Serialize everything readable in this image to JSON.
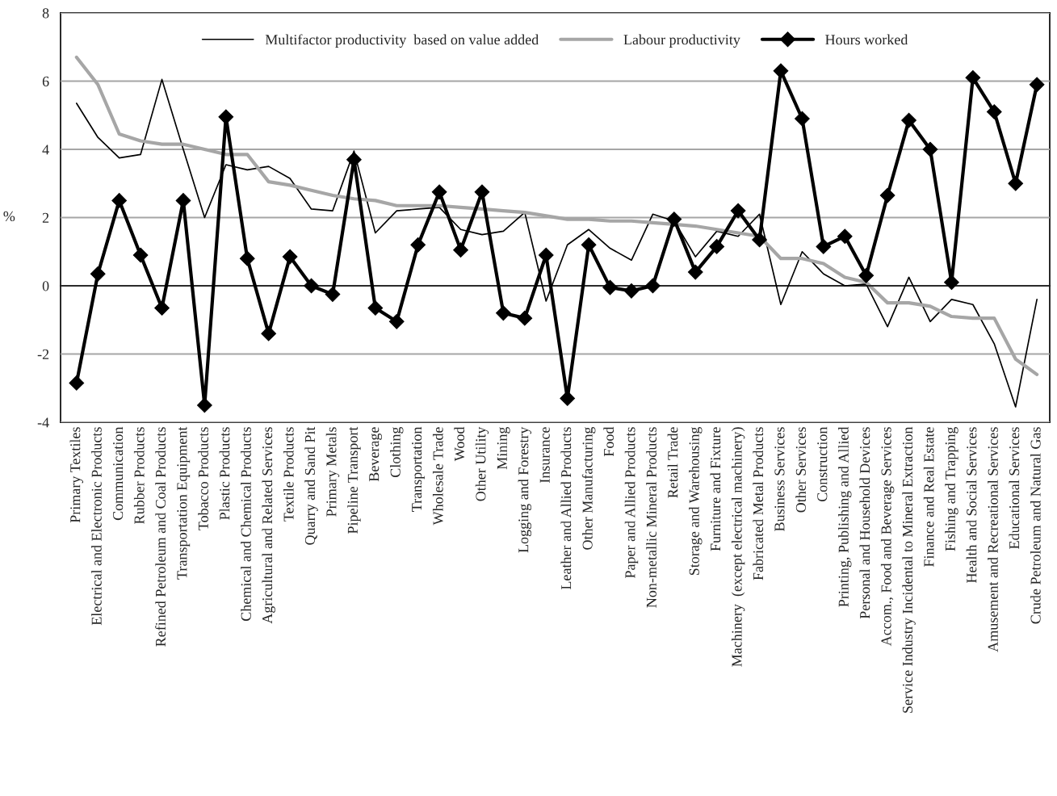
{
  "chart_data": {
    "type": "line",
    "ylabel": "%",
    "categories": [
      "Primary Textiles",
      "Electrical and Electronic Products",
      "Communication",
      "Rubber Products",
      "Refined Petroleum and Coal Products",
      "Transportation Equipment",
      "Tobacco Products",
      "Plastic Products",
      "Chemical and Chemical Products",
      "Agricultural and Related Services",
      "Textile Products",
      "Quarry and Sand Pit",
      "Primary Metals",
      "Pipeline Transport",
      "Beverage",
      "Clothing",
      "Transportation",
      "Wholesale Trade",
      "Wood",
      "Other Utility",
      "Mining",
      "Logging and Forestry",
      "Insurance",
      "Leather and Allied Products",
      "Other Manufacturing",
      "Food",
      "Paper and Allied Products",
      "Non-metallic Mineral Products",
      "Retail Trade",
      "Storage and Warehousing",
      "Furniture and Fixture",
      "Machinery  (except electrical machinery)",
      "Fabricated Metal Products",
      "Business Services",
      "Other Services",
      "Construction",
      "Printing, Publishing and Allied",
      "Personal and Household Devices",
      "Accom., Food and Beverage Services",
      "Service Industry Incidental to Mineral Extraction",
      "Finance and Real Estate",
      "Fishing and Trapping",
      "Health and Social Services",
      "Amusement and Recreational Services",
      "Educational Services",
      "Crude Petroleum and Natural Gas"
    ],
    "series": [
      {
        "name": "Multifactor productivity  based on value added",
        "color": "#000000",
        "marker": "none",
        "values": [
          5.35,
          4.35,
          3.75,
          3.85,
          6.05,
          4.0,
          2.0,
          3.55,
          3.4,
          3.5,
          3.15,
          2.25,
          2.2,
          3.95,
          1.55,
          2.2,
          2.25,
          2.3,
          1.65,
          1.5,
          1.6,
          2.15,
          -0.45,
          1.2,
          1.65,
          1.1,
          0.75,
          2.1,
          1.9,
          0.85,
          1.6,
          1.45,
          2.1,
          -0.55,
          1.0,
          0.35,
          0.0,
          0.05,
          -1.2,
          0.25,
          -1.05,
          -0.4,
          -0.55,
          -1.7,
          -3.55,
          -0.4
        ]
      },
      {
        "name": "Labour productivity",
        "color": "#a6a6a6",
        "marker": "none",
        "values": [
          6.7,
          5.9,
          4.45,
          4.25,
          4.15,
          4.15,
          4.0,
          3.85,
          3.85,
          3.05,
          2.95,
          2.8,
          2.65,
          2.55,
          2.5,
          2.35,
          2.35,
          2.35,
          2.3,
          2.25,
          2.2,
          2.15,
          2.05,
          1.95,
          1.95,
          1.9,
          1.9,
          1.85,
          1.8,
          1.75,
          1.65,
          1.55,
          1.45,
          0.8,
          0.8,
          0.65,
          0.25,
          0.1,
          -0.5,
          -0.5,
          -0.6,
          -0.9,
          -0.95,
          -0.95,
          -2.15,
          -2.6
        ]
      },
      {
        "name": "Hours worked",
        "color": "#000000",
        "marker": "diamond",
        "values": [
          -2.85,
          0.35,
          2.5,
          0.9,
          -0.65,
          2.5,
          -3.5,
          4.95,
          0.8,
          -1.4,
          0.85,
          0.0,
          -0.25,
          3.7,
          -0.65,
          -1.05,
          1.2,
          2.75,
          1.05,
          2.75,
          -0.8,
          -0.95,
          0.9,
          -3.3,
          1.2,
          -0.05,
          -0.15,
          0.0,
          1.95,
          0.4,
          1.15,
          2.2,
          1.35,
          6.3,
          4.9,
          1.15,
          1.45,
          0.3,
          2.65,
          4.85,
          4.0,
          0.1,
          6.1,
          5.1,
          3.0,
          5.9
        ]
      }
    ],
    "ylim": [
      -4,
      8
    ],
    "yticks": [
      -4,
      -2,
      0,
      2,
      4,
      6,
      8
    ],
    "grid": "y",
    "legend": "top"
  }
}
